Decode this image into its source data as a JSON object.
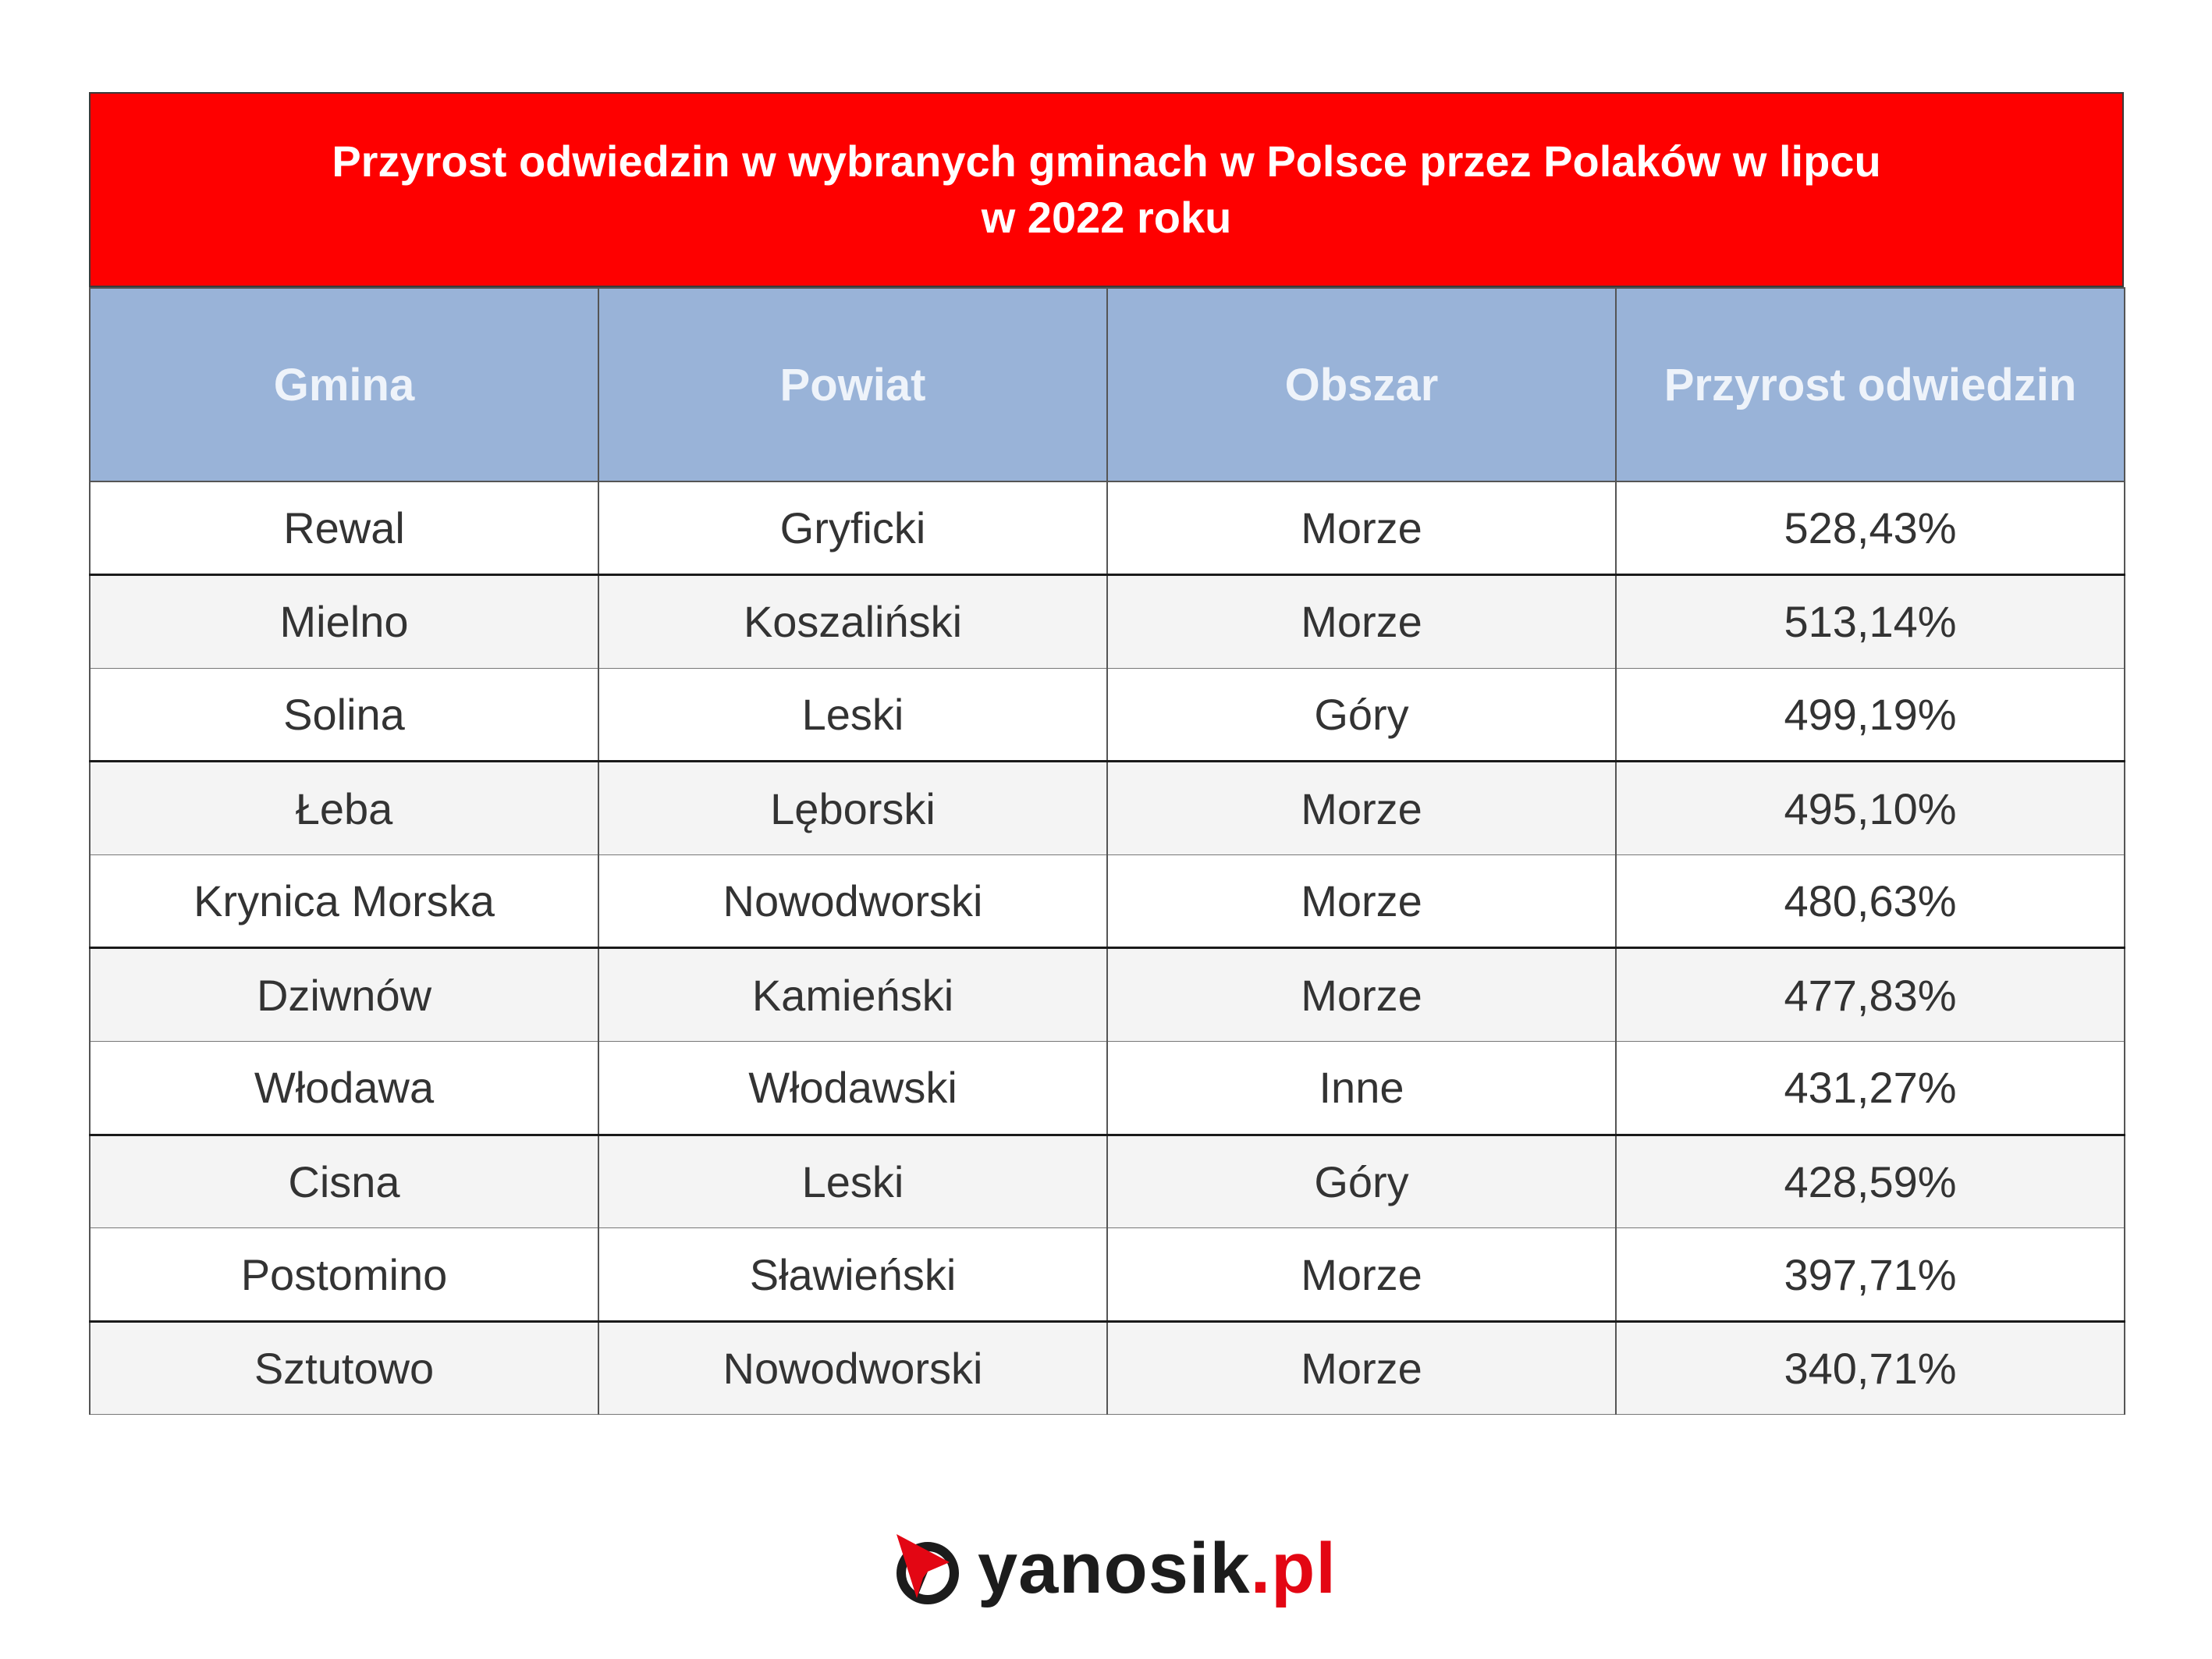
{
  "chart_data": {
    "type": "table",
    "title_line1": "Przyrost odwiedzin w wybranych gminach w Polsce przez Polaków w lipcu",
    "title_line2": "w 2022 roku",
    "columns": [
      "Gmina",
      "Powiat",
      "Obszar",
      "Przyrost odwiedzin"
    ],
    "rows": [
      [
        "Rewal",
        "Gryficki",
        "Morze",
        "528,43%"
      ],
      [
        "Mielno",
        "Koszaliński",
        "Morze",
        "513,14%"
      ],
      [
        "Solina",
        "Leski",
        "Góry",
        "499,19%"
      ],
      [
        "Łeba",
        "Lęborski",
        "Morze",
        "495,10%"
      ],
      [
        "Krynica Morska",
        "Nowodworski",
        "Morze",
        "480,63%"
      ],
      [
        "Dziwnów",
        "Kamieński",
        "Morze",
        "477,83%"
      ],
      [
        "Włodawa",
        "Włodawski",
        "Inne",
        "431,27%"
      ],
      [
        "Cisna",
        "Leski",
        "Góry",
        "428,59%"
      ],
      [
        "Postomino",
        "Sławieński",
        "Morze",
        "397,71%"
      ],
      [
        "Sztutowo",
        "Nowodworski",
        "Morze",
        "340,71%"
      ]
    ]
  },
  "colors": {
    "title_bg": "#fe0000",
    "header_bg": "#99b3d8",
    "header_text": "#eef3fa",
    "row_alt_bg": "#f4f4f4",
    "logo_red": "#e30613"
  },
  "logo": {
    "icon": "yanosik-compass-icon",
    "name": "yanosik",
    "tld": ".pl"
  }
}
